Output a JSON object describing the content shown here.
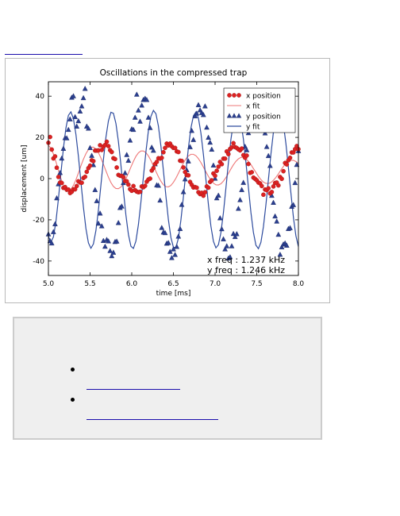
{
  "top_link": {
    "label": ""
  },
  "chart_data": {
    "type": "scatter",
    "title": "Oscillations in the compressed trap",
    "xlabel": "time [ms]",
    "ylabel": "displacement [um]",
    "xlim": [
      5.0,
      8.0
    ],
    "ylim": [
      -47,
      47
    ],
    "xticks": [
      "5.0",
      "5.5",
      "6.0",
      "6.5",
      "7.0",
      "7.5",
      "8.0"
    ],
    "yticks": [
      "-40",
      "-20",
      "0",
      "20",
      "40"
    ],
    "grid": false,
    "legend_position": "top-right",
    "legend": [
      "x position",
      "x fit",
      "y position",
      "y fit"
    ],
    "annotations": [
      "x freq :  1.237 kHz",
      "y freq :  1.246 kHz"
    ],
    "colors": {
      "x": "#dd2222",
      "x_fit": "#ee7777",
      "y": "#2b3f8f",
      "y_fit": "#2d4b9e"
    },
    "series": [
      {
        "name": "x position",
        "marker": "circle",
        "x": [
          5.0,
          5.02,
          5.04,
          5.06,
          5.08,
          5.1,
          5.12,
          5.14,
          5.16,
          5.18,
          5.2,
          5.22,
          5.24,
          5.26,
          5.28,
          5.3,
          5.32,
          5.34,
          5.36,
          5.38,
          5.4,
          5.42,
          5.44,
          5.46,
          5.48,
          5.5,
          5.52,
          5.54,
          5.56,
          5.58,
          5.6,
          5.62,
          5.64,
          5.66,
          5.68,
          5.7,
          5.72,
          5.74,
          5.76,
          5.78,
          5.8,
          5.82,
          5.84,
          5.86,
          5.88,
          5.9,
          5.92,
          5.94,
          5.96,
          5.98,
          6.0,
          6.02,
          6.04,
          6.06,
          6.08,
          6.1,
          6.12,
          6.14,
          6.16,
          6.18,
          6.2,
          6.22,
          6.24,
          6.26,
          6.28,
          6.3,
          6.32,
          6.34,
          6.36,
          6.38,
          6.4,
          6.42,
          6.44,
          6.46,
          6.48,
          6.5,
          6.52,
          6.54,
          6.56,
          6.58,
          6.6,
          6.62,
          6.64,
          6.66,
          6.68,
          6.7,
          6.72,
          6.74,
          6.76,
          6.78,
          6.8,
          6.82,
          6.84,
          6.86,
          6.88,
          6.9,
          6.92,
          6.94,
          6.96,
          6.98,
          7.0,
          7.02,
          7.04,
          7.06,
          7.08,
          7.1,
          7.12,
          7.14,
          7.16,
          7.18,
          7.2,
          7.22,
          7.24,
          7.26,
          7.28,
          7.3,
          7.32,
          7.34,
          7.36,
          7.38,
          7.4,
          7.42,
          7.44,
          7.46,
          7.48,
          7.5,
          7.52,
          7.54,
          7.56,
          7.58,
          7.6,
          7.62,
          7.64,
          7.66,
          7.68,
          7.7,
          7.72,
          7.74,
          7.76,
          7.78,
          7.8,
          7.82,
          7.84,
          7.86,
          7.88,
          7.9,
          7.92,
          7.94,
          7.96,
          7.98,
          8.0
        ],
        "values": [
          17.4,
          20.2,
          14.1,
          9.8,
          10.8,
          5.3,
          0.8,
          -1.9,
          -2.1,
          -4.5,
          -4.1,
          -5.4,
          -5.3,
          -7.0,
          -6.4,
          -5.2,
          -5.2,
          -3.6,
          -1.3,
          -1.9,
          -2.0,
          0.3,
          0.9,
          3.3,
          5.1,
          6.3,
          8.9,
          8.5,
          13.6,
          13.6,
          13.7,
          16.2,
          13.9,
          15.5,
          16.3,
          17.9,
          15.8,
          13.8,
          12.9,
          9.9,
          9.5,
          5.4,
          1.8,
          1.4,
          1.3,
          0.7,
          -1.2,
          -1.3,
          -2.9,
          -5.1,
          -5.9,
          -3.6,
          -5.6,
          -6.3,
          -6.6,
          -6.4,
          -3.8,
          -4.2,
          -3.5,
          -1.5,
          -0.4,
          0.0,
          3.9,
          5.1,
          7.1,
          8.1,
          9.9,
          9.7,
          10.1,
          12.8,
          14.9,
          17.0,
          16.1,
          17.0,
          15.7,
          14.9,
          14.9,
          13.2,
          12.9,
          8.7,
          8.6,
          5.4,
          3.2,
          1.7,
          1.6,
          -1.6,
          -3.0,
          -4.3,
          -4.1,
          -4.4,
          -6.6,
          -7.5,
          -6.9,
          -8.3,
          -6.6,
          -3.8,
          -4.4,
          -1.6,
          -0.8,
          2.5,
          1.4,
          3.8,
          5.8,
          8.1,
          7.0,
          9.7,
          9.7,
          13.2,
          11.9,
          14.4,
          15.2,
          17.2,
          15.3,
          14.9,
          14.2,
          13.7,
          14.6,
          11.4,
          10.1,
          11.2,
          7.1,
          2.8,
          3.1,
          0.5,
          -0.1,
          -0.8,
          -1.9,
          -2.3,
          -3.6,
          -7.8,
          -5.3,
          -5.6,
          -4.7,
          -7.2,
          -6.5,
          -3.8,
          -2.1,
          -1.9,
          -3.3,
          0.8,
          -0.1,
          3.6,
          7.6,
          6.9,
          8.9,
          10.1,
          12.7,
          12.7,
          14.3,
          15.8,
          14.3
        ]
      },
      {
        "name": "x fit",
        "x": [
          5.0,
          5.03,
          5.06,
          5.09,
          5.12,
          5.15,
          5.18,
          5.21,
          5.24,
          5.27,
          5.3,
          5.33,
          5.36,
          5.39,
          5.42,
          5.45,
          5.48,
          5.51,
          5.54,
          5.57,
          5.6,
          5.63,
          5.66,
          5.69,
          5.72,
          5.75,
          5.78,
          5.81,
          5.84,
          5.87,
          5.9,
          5.93,
          5.96,
          5.99,
          6.02,
          6.05,
          6.08,
          6.11,
          6.14,
          6.17,
          6.2,
          6.23,
          6.26,
          6.29,
          6.32,
          6.35,
          6.38,
          6.41,
          6.44,
          6.47,
          6.5,
          6.53,
          6.56,
          6.59,
          6.62,
          6.65,
          6.68,
          6.71,
          6.74,
          6.77,
          6.8,
          6.83,
          6.86,
          6.89,
          6.92,
          6.95,
          6.98,
          7.01,
          7.04,
          7.07,
          7.1,
          7.13,
          7.16,
          7.19,
          7.22,
          7.25,
          7.28,
          7.31,
          7.34,
          7.37,
          7.4,
          7.43,
          7.46,
          7.49,
          7.52,
          7.55,
          7.58,
          7.61,
          7.64,
          7.67,
          7.7,
          7.73,
          7.76,
          7.79,
          7.82,
          7.85,
          7.88,
          7.91,
          7.94,
          7.97,
          8.0
        ],
        "values": [
          16.1,
          14.8,
          12.0,
          8.2,
          4.0,
          0.0,
          -3.2,
          -5.2,
          -5.9,
          -5.2,
          -3.3,
          -0.6,
          2.7,
          6.2,
          9.4,
          12.1,
          14.1,
          15.2,
          15.3,
          14.4,
          12.6,
          10.0,
          7.0,
          3.8,
          0.7,
          -1.9,
          -3.8,
          -4.8,
          -4.9,
          -4.1,
          -2.4,
          -0.1,
          2.7,
          5.6,
          8.4,
          10.8,
          12.5,
          13.4,
          13.4,
          12.6,
          11.0,
          8.8,
          6.2,
          3.5,
          0.9,
          -1.3,
          -3.0,
          -3.9,
          -4.0,
          -3.3,
          -1.8,
          0.2,
          2.6,
          5.1,
          7.5,
          9.6,
          11.0,
          11.8,
          11.8,
          11.1,
          9.7,
          7.8,
          5.6,
          3.3,
          1.1,
          -0.8,
          -2.2,
          -3.0,
          -3.1,
          -2.5,
          -1.2,
          0.5,
          2.5,
          4.7,
          6.7,
          8.4,
          9.6,
          10.3,
          10.3,
          9.6,
          8.4,
          6.8,
          4.9,
          3.0,
          1.1,
          -0.5,
          -1.7,
          -2.3,
          -2.4,
          -1.9,
          -0.8,
          0.6,
          2.3,
          4.2,
          5.9,
          7.3,
          8.4,
          8.9,
          8.9,
          8.3,
          7.3
        ]
      },
      {
        "name": "y position",
        "marker": "triangle",
        "x": [
          5.0,
          5.02,
          5.04,
          5.06,
          5.08,
          5.1,
          5.12,
          5.14,
          5.16,
          5.18,
          5.2,
          5.22,
          5.24,
          5.26,
          5.28,
          5.3,
          5.32,
          5.34,
          5.36,
          5.38,
          5.4,
          5.42,
          5.44,
          5.46,
          5.48,
          5.5,
          5.52,
          5.54,
          5.56,
          5.58,
          5.6,
          5.62,
          5.64,
          5.66,
          5.68,
          5.7,
          5.72,
          5.74,
          5.76,
          5.78,
          5.8,
          5.82,
          5.84,
          5.86,
          5.88,
          5.9,
          5.92,
          5.94,
          5.96,
          5.98,
          6.0,
          6.02,
          6.04,
          6.06,
          6.08,
          6.1,
          6.12,
          6.14,
          6.16,
          6.18,
          6.2,
          6.22,
          6.24,
          6.26,
          6.28,
          6.3,
          6.32,
          6.34,
          6.36,
          6.38,
          6.4,
          6.42,
          6.44,
          6.46,
          6.48,
          6.5,
          6.52,
          6.54,
          6.56,
          6.58,
          6.6,
          6.62,
          6.64,
          6.66,
          6.68,
          6.7,
          6.72,
          6.74,
          6.76,
          6.78,
          6.8,
          6.82,
          6.84,
          6.86,
          6.88,
          6.9,
          6.92,
          6.94,
          6.96,
          6.98,
          7.0,
          7.02,
          7.04,
          7.06,
          7.08,
          7.1,
          7.12,
          7.14,
          7.16,
          7.18,
          7.2,
          7.22,
          7.24,
          7.26,
          7.28,
          7.3,
          7.32,
          7.34,
          7.36,
          7.38,
          7.4,
          7.42,
          7.44,
          7.46,
          7.48,
          7.5,
          7.52,
          7.54,
          7.56,
          7.58,
          7.6,
          7.62,
          7.64,
          7.66,
          7.68,
          7.7,
          7.72,
          7.74,
          7.76,
          7.78,
          7.8,
          7.82,
          7.84,
          7.86,
          7.88,
          7.9,
          7.92,
          7.94,
          7.96,
          7.98,
          8.0
        ],
        "values": [
          -27.0,
          -30.3,
          -31.4,
          -25.9,
          -22.1,
          -9.5,
          -2.7,
          2.8,
          9.8,
          14.5,
          19.7,
          19.6,
          23.7,
          28.8,
          39.3,
          40.0,
          29.9,
          25.3,
          27.9,
          32.6,
          35.1,
          39.1,
          43.6,
          25.3,
          24.3,
          14.9,
          11.1,
          6.6,
          -5.5,
          -10.9,
          -21.8,
          -16.9,
          -23.1,
          -30.2,
          -33.0,
          -29.7,
          -30.4,
          -35.1,
          -37.6,
          -35.9,
          -30.7,
          -30.5,
          -21.5,
          -14.2,
          -13.5,
          -2.1,
          2.7,
          11.5,
          8.7,
          18.5,
          24.0,
          23.7,
          29.6,
          40.8,
          33.1,
          27.7,
          35.5,
          38.2,
          38.8,
          38.2,
          29.6,
          24.6,
          15.1,
          13.6,
          7.0,
          -3.2,
          -3.4,
          -10.6,
          -23.9,
          -26.1,
          -26.4,
          -31.5,
          -31.2,
          -35.5,
          -38.5,
          -34.3,
          -37.0,
          -33.1,
          -28.1,
          -24.4,
          -12.7,
          -6.5,
          -0.3,
          4.1,
          8.4,
          15.3,
          23.2,
          18.8,
          30.3,
          31.6,
          35.7,
          33.2,
          31.9,
          30.9,
          35.1,
          24.8,
          19.9,
          17.5,
          14.1,
          6.4,
          0.0,
          -9.5,
          -8.2,
          -19.2,
          -24.5,
          -29.4,
          -34.3,
          -32.8,
          -38.7,
          -38.1,
          -32.8,
          -26.8,
          -28.3,
          -26.9,
          -14.6,
          -10.4,
          -5.5,
          -2.0,
          15.5,
          13.8,
          22.1,
          32.8,
          30.1,
          31.6,
          36.6,
          41.5,
          38.5,
          32.2,
          30.4,
          23.4,
          22.0,
          15.4,
          11.0,
          6.2,
          -8.3,
          -11.7,
          -18.3,
          -20.8,
          -27.2,
          -36.9,
          -33.3,
          -31.9,
          -31.4,
          -32.5,
          -24.4,
          -24.0,
          -13.6,
          -12.8,
          -2.1,
          6.7,
          13.4
        ]
      },
      {
        "name": "y fit",
        "x": [
          5.0,
          5.03,
          5.06,
          5.09,
          5.12,
          5.15,
          5.18,
          5.21,
          5.24,
          5.27,
          5.3,
          5.33,
          5.36,
          5.39,
          5.42,
          5.45,
          5.48,
          5.51,
          5.54,
          5.57,
          5.6,
          5.63,
          5.66,
          5.69,
          5.72,
          5.75,
          5.78,
          5.81,
          5.84,
          5.87,
          5.9,
          5.93,
          5.96,
          5.99,
          6.02,
          6.05,
          6.08,
          6.11,
          6.14,
          6.17,
          6.2,
          6.23,
          6.26,
          6.29,
          6.32,
          6.35,
          6.38,
          6.41,
          6.44,
          6.47,
          6.5,
          6.53,
          6.56,
          6.59,
          6.62,
          6.65,
          6.68,
          6.71,
          6.74,
          6.77,
          6.8,
          6.83,
          6.86,
          6.89,
          6.92,
          6.95,
          6.98,
          7.01,
          7.04,
          7.07,
          7.1,
          7.13,
          7.16,
          7.19,
          7.22,
          7.25,
          7.28,
          7.31,
          7.34,
          7.37,
          7.4,
          7.43,
          7.46,
          7.49,
          7.52,
          7.55,
          7.58,
          7.61,
          7.64,
          7.67,
          7.7,
          7.73,
          7.76,
          7.79,
          7.82,
          7.85,
          7.88,
          7.91,
          7.94,
          7.97,
          8.0
        ],
        "values": [
          -28.0,
          -30.8,
          -28.3,
          -20.9,
          -9.9,
          2.6,
          14.7,
          24.5,
          30.7,
          32.4,
          29.1,
          21.5,
          10.8,
          -1.6,
          -13.8,
          -24.2,
          -31.2,
          -33.8,
          -31.7,
          -25.2,
          -15.3,
          -3.1,
          9.2,
          20.0,
          28.0,
          32.2,
          31.7,
          26.8,
          18.0,
          6.6,
          -5.8,
          -17.7,
          -27.1,
          -32.8,
          -33.9,
          -30.3,
          -22.3,
          -11.4,
          0.9,
          13.0,
          23.3,
          30.2,
          33.1,
          31.5,
          25.5,
          15.8,
          3.9,
          -8.5,
          -20.0,
          -28.6,
          -33.3,
          -33.5,
          -28.9,
          -20.1,
          -8.8,
          3.4,
          15.0,
          24.5,
          30.5,
          32.3,
          29.4,
          22.1,
          11.7,
          -0.4,
          -12.6,
          -23.1,
          -30.4,
          -33.6,
          -32.1,
          -26.2,
          -16.6,
          -4.6,
          7.8,
          19.0,
          27.3,
          31.9,
          32.0,
          27.5,
          19.1,
          7.9,
          -4.3,
          -16.4,
          -26.1,
          -32.3,
          -34.0,
          -30.9,
          -23.4,
          -12.7,
          -0.5,
          11.8,
          22.5,
          29.8,
          33.0,
          31.9,
          26.4,
          17.0,
          5.2,
          -7.0,
          -18.8,
          -27.8,
          -33.0
        ]
      }
    ]
  },
  "panel": {
    "items": [
      {
        "label": ""
      },
      {
        "label": ""
      }
    ]
  }
}
